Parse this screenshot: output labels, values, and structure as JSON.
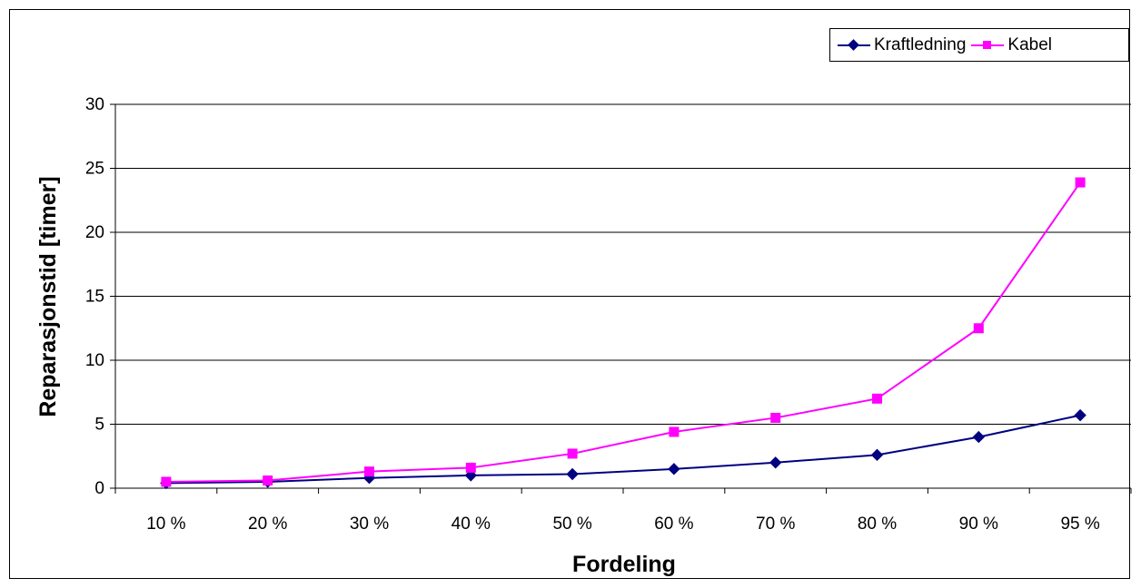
{
  "colors": {
    "series_1": "#000080",
    "series_2": "#ff00ff",
    "grid": "#000000",
    "background": "#ffffff"
  },
  "chart_data": {
    "type": "line",
    "title": "",
    "xlabel": "Fordeling",
    "ylabel": "Reparasjonstid [timer]",
    "categories": [
      "10 %",
      "20 %",
      "30 %",
      "40 %",
      "50 %",
      "60 %",
      "70 %",
      "80 %",
      "90 %",
      "95 %"
    ],
    "ylim": [
      0,
      30
    ],
    "yticks": [
      "0",
      "5",
      "10",
      "15",
      "20",
      "25",
      "30"
    ],
    "grid": true,
    "legend_position": "top-right",
    "series": [
      {
        "name": "Kraftledning",
        "marker": "diamond",
        "values": [
          0.4,
          0.5,
          0.8,
          1.0,
          1.1,
          1.5,
          2.0,
          2.6,
          4.0,
          5.7
        ]
      },
      {
        "name": "Kabel",
        "marker": "square",
        "values": [
          0.5,
          0.6,
          1.3,
          1.6,
          2.7,
          4.4,
          5.5,
          7.0,
          12.5,
          23.9
        ]
      }
    ]
  }
}
